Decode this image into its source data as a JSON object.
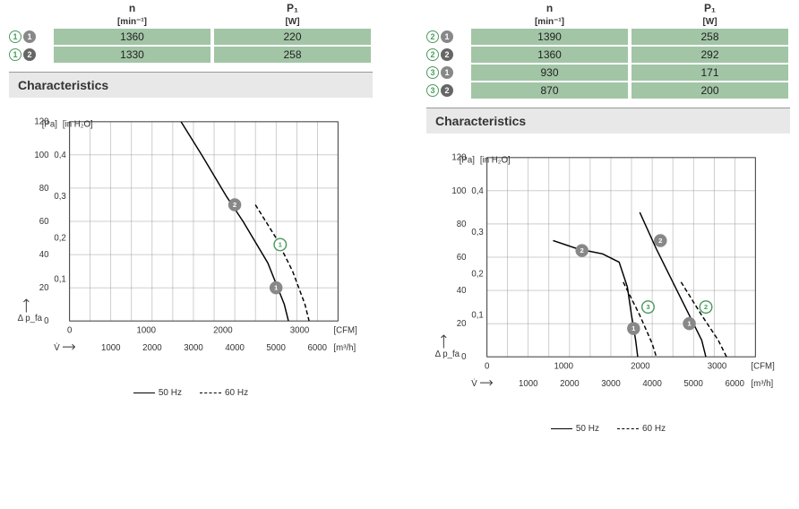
{
  "left": {
    "table": {
      "headers": [
        {
          "top": "n",
          "sub": "[min⁻¹]"
        },
        {
          "top": "P₁",
          "sub": "[W]"
        }
      ],
      "rows": [
        {
          "badges": [
            {
              "num": "1",
              "style": "green"
            },
            {
              "num": "1",
              "style": "gray"
            }
          ],
          "cells": [
            "1360",
            "220"
          ]
        },
        {
          "badges": [
            {
              "num": "1",
              "style": "green"
            },
            {
              "num": "2",
              "style": "darkgray"
            }
          ],
          "cells": [
            "1330",
            "258"
          ]
        }
      ]
    },
    "section_title": "Characteristics",
    "chart": {
      "y_left_label": "[Pa]",
      "y_right_label": "[in H₂O]",
      "x_bottom_label": "[m³/h]",
      "x_top_label": "[CFM]",
      "y_left_unit": "Δ p_fa",
      "x_unit": "V̇",
      "ylim": [
        0,
        120
      ],
      "xlim_cfm": [
        0,
        3500
      ],
      "xlim_m3h": [
        0,
        6500
      ],
      "yticks_pa": [
        0,
        20,
        40,
        60,
        80,
        100,
        120
      ],
      "yticks_inh2o": [
        0,
        "0,1",
        "0,2",
        "0,3",
        "0,4"
      ],
      "xticks_cfm": [
        0,
        1000,
        2000,
        3000
      ],
      "xticks_m3h": [
        1000,
        2000,
        3000,
        4000,
        5000,
        6000
      ],
      "grid_color": "#999999",
      "curves": [
        {
          "type": "solid",
          "points_m3h_pa": [
            [
              2700,
              120
            ],
            [
              3200,
              100
            ],
            [
              3800,
              75
            ],
            [
              4200,
              60
            ],
            [
              4800,
              35
            ],
            [
              5200,
              10
            ],
            [
              5300,
              0
            ]
          ]
        },
        {
          "type": "dash",
          "points_m3h_pa": [
            [
              4500,
              70
            ],
            [
              5000,
              50
            ],
            [
              5400,
              30
            ],
            [
              5700,
              10
            ],
            [
              5800,
              0
            ]
          ]
        }
      ],
      "markers": [
        {
          "num": "2",
          "style": "gray",
          "m3h": 4000,
          "pa": 70
        },
        {
          "num": "1",
          "style": "gray",
          "m3h": 5000,
          "pa": 20
        },
        {
          "num": "1",
          "style": "green",
          "m3h": 5100,
          "pa": 46
        }
      ],
      "legend": [
        {
          "label": "50 Hz",
          "style": "solid"
        },
        {
          "label": "60 Hz",
          "style": "dash"
        }
      ]
    }
  },
  "right": {
    "table": {
      "headers": [
        {
          "top": "n",
          "sub": "[min⁻¹]"
        },
        {
          "top": "P₁",
          "sub": "[W]"
        }
      ],
      "rows": [
        {
          "badges": [
            {
              "num": "2",
              "style": "green"
            },
            {
              "num": "1",
              "style": "gray"
            }
          ],
          "cells": [
            "1390",
            "258"
          ]
        },
        {
          "badges": [
            {
              "num": "2",
              "style": "green"
            },
            {
              "num": "2",
              "style": "darkgray"
            }
          ],
          "cells": [
            "1360",
            "292"
          ]
        },
        {
          "badges": [
            {
              "num": "3",
              "style": "green"
            },
            {
              "num": "1",
              "style": "gray"
            }
          ],
          "cells": [
            "930",
            "171"
          ]
        },
        {
          "badges": [
            {
              "num": "3",
              "style": "green"
            },
            {
              "num": "2",
              "style": "darkgray"
            }
          ],
          "cells": [
            "870",
            "200"
          ]
        }
      ]
    },
    "section_title": "Characteristics",
    "chart": {
      "y_left_label": "[Pa]",
      "y_right_label": "[in H₂O]",
      "x_bottom_label": "[m³/h]",
      "x_top_label": "[CFM]",
      "y_left_unit": "Δ p_fa",
      "x_unit": "V̇",
      "ylim": [
        0,
        120
      ],
      "xlim_cfm": [
        0,
        3500
      ],
      "xlim_m3h": [
        0,
        6500
      ],
      "yticks_pa": [
        0,
        20,
        40,
        60,
        80,
        100,
        120
      ],
      "yticks_inh2o": [
        0,
        "0,1",
        "0,2",
        "0,3",
        "0,4"
      ],
      "xticks_cfm": [
        0,
        1000,
        2000,
        3000
      ],
      "xticks_m3h": [
        1000,
        2000,
        3000,
        4000,
        5000,
        6000
      ],
      "grid_color": "#999999",
      "curves": [
        {
          "type": "solid",
          "points_m3h_pa": [
            [
              1600,
              70
            ],
            [
              2200,
              65
            ],
            [
              2800,
              62
            ],
            [
              3200,
              57
            ],
            [
              3400,
              42
            ],
            [
              3500,
              25
            ],
            [
              3600,
              10
            ],
            [
              3650,
              0
            ]
          ]
        },
        {
          "type": "dash",
          "points_m3h_pa": [
            [
              3300,
              45
            ],
            [
              3700,
              25
            ],
            [
              4000,
              8
            ],
            [
              4100,
              0
            ]
          ]
        },
        {
          "type": "solid",
          "points_m3h_pa": [
            [
              3700,
              87
            ],
            [
              4100,
              65
            ],
            [
              4600,
              40
            ],
            [
              5000,
              20
            ],
            [
              5200,
              10
            ],
            [
              5300,
              0
            ]
          ]
        },
        {
          "type": "dash",
          "points_m3h_pa": [
            [
              4700,
              45
            ],
            [
              5200,
              25
            ],
            [
              5600,
              10
            ],
            [
              5800,
              0
            ]
          ]
        }
      ],
      "markers": [
        {
          "num": "2",
          "style": "gray",
          "m3h": 2300,
          "pa": 64
        },
        {
          "num": "1",
          "style": "gray",
          "m3h": 3550,
          "pa": 17
        },
        {
          "num": "3",
          "style": "green",
          "m3h": 3900,
          "pa": 30
        },
        {
          "num": "2",
          "style": "gray",
          "m3h": 4200,
          "pa": 70
        },
        {
          "num": "1",
          "style": "gray",
          "m3h": 4900,
          "pa": 20
        },
        {
          "num": "2",
          "style": "green",
          "m3h": 5300,
          "pa": 30
        }
      ],
      "legend": [
        {
          "label": "50 Hz",
          "style": "solid"
        },
        {
          "label": "60 Hz",
          "style": "dash"
        }
      ]
    }
  }
}
